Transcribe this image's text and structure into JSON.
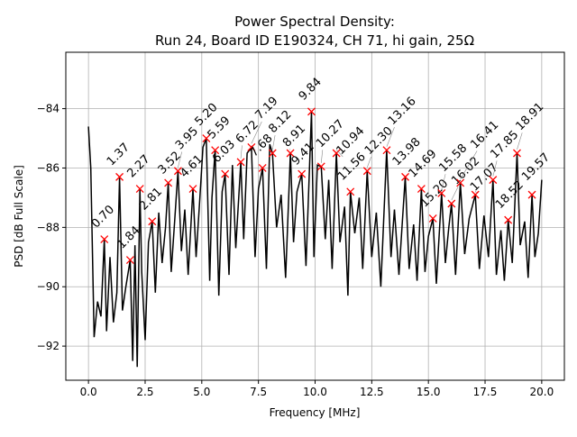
{
  "chart_data": {
    "type": "line",
    "title": "Power Spectral Density:",
    "subtitle": "Run 24, Board ID E190324, CH 71, hi gain, 25Ω",
    "xlabel": "Frequency [MHz]",
    "ylabel": "PSD [dB Full Scale]",
    "xlim": [
      -1.0,
      21.0
    ],
    "ylim": [
      -93.15,
      -82.1
    ],
    "xticks": [
      0.0,
      2.5,
      5.0,
      7.5,
      10.0,
      12.5,
      15.0,
      17.5,
      20.0
    ],
    "xtick_labels": [
      "0.0",
      "2.5",
      "5.0",
      "7.5",
      "10.0",
      "12.5",
      "15.0",
      "17.5",
      "20.0"
    ],
    "yticks": [
      -92,
      -90,
      -88,
      -86,
      -84
    ],
    "ytick_labels": [
      "−92",
      "−90",
      "−88",
      "−86",
      "−84"
    ],
    "grid": true,
    "line_color": "#000000",
    "marker_color": "#ff0000",
    "series": [
      {
        "x": [
          0.0,
          0.1,
          0.25,
          0.4,
          0.55,
          0.7,
          0.8,
          0.95,
          1.1,
          1.25,
          1.37,
          1.5,
          1.65,
          1.84,
          1.95,
          2.05,
          2.15,
          2.27,
          2.35,
          2.5,
          2.65,
          2.81,
          2.95,
          3.1,
          3.25,
          3.4,
          3.52,
          3.65,
          3.8,
          3.95,
          4.1,
          4.25,
          4.4,
          4.61,
          4.75,
          4.9,
          5.05,
          5.2,
          5.35,
          5.45,
          5.59,
          5.75,
          5.9,
          6.03,
          6.2,
          6.35,
          6.5,
          6.72,
          6.85,
          7.0,
          7.19,
          7.35,
          7.5,
          7.68,
          7.85,
          8.0,
          8.12,
          8.3,
          8.5,
          8.7,
          8.91,
          9.05,
          9.2,
          9.41,
          9.6,
          9.84,
          9.95,
          10.1,
          10.27,
          10.45,
          10.6,
          10.75,
          10.94,
          11.1,
          11.3,
          11.45,
          11.56,
          11.75,
          11.95,
          12.1,
          12.3,
          12.5,
          12.7,
          12.9,
          13.16,
          13.35,
          13.5,
          13.7,
          13.85,
          13.98,
          14.15,
          14.35,
          14.5,
          14.69,
          14.85,
          15.0,
          15.2,
          15.35,
          15.58,
          15.75,
          15.9,
          16.02,
          16.2,
          16.41,
          16.6,
          16.8,
          17.07,
          17.25,
          17.45,
          17.65,
          17.85,
          18.0,
          18.2,
          18.35,
          18.52,
          18.7,
          18.91,
          19.05,
          19.25,
          19.4,
          19.57,
          19.7,
          19.85,
          20.0
        ],
        "y": [
          -84.6,
          -86.0,
          -91.7,
          -90.5,
          -91.0,
          -88.4,
          -91.5,
          -89.0,
          -91.2,
          -90.2,
          -86.3,
          -90.8,
          -90.0,
          -89.1,
          -92.5,
          -88.6,
          -92.7,
          -86.7,
          -89.5,
          -91.8,
          -88.5,
          -87.8,
          -90.2,
          -87.5,
          -89.2,
          -88.0,
          -86.5,
          -89.5,
          -87.8,
          -86.1,
          -88.8,
          -87.4,
          -89.6,
          -86.7,
          -89.0,
          -87.2,
          -85.3,
          -85.0,
          -89.8,
          -87.0,
          -85.4,
          -90.3,
          -86.8,
          -86.2,
          -89.6,
          -85.9,
          -88.7,
          -85.8,
          -88.4,
          -85.5,
          -85.3,
          -89.0,
          -86.7,
          -86.0,
          -89.4,
          -85.2,
          -85.5,
          -88.0,
          -86.9,
          -89.7,
          -85.5,
          -88.5,
          -86.8,
          -86.2,
          -89.3,
          -84.1,
          -89.0,
          -85.9,
          -85.95,
          -88.4,
          -86.4,
          -89.4,
          -85.5,
          -88.5,
          -87.3,
          -90.3,
          -86.8,
          -88.2,
          -87.0,
          -89.4,
          -86.1,
          -89.0,
          -87.5,
          -90.0,
          -85.4,
          -89.0,
          -87.4,
          -89.6,
          -87.8,
          -86.3,
          -89.4,
          -87.9,
          -89.8,
          -86.7,
          -89.5,
          -88.3,
          -87.7,
          -89.9,
          -86.85,
          -89.2,
          -88.0,
          -87.2,
          -89.6,
          -86.5,
          -88.9,
          -87.7,
          -86.9,
          -89.4,
          -87.6,
          -89.0,
          -86.4,
          -89.6,
          -88.1,
          -89.8,
          -87.75,
          -89.2,
          -85.5,
          -88.6,
          -87.8,
          -89.7,
          -86.9,
          -89.0,
          -88.2,
          -86.4
        ]
      }
    ],
    "peaks": [
      {
        "label": "0.70",
        "x": 0.7,
        "y": -88.4
      },
      {
        "label": "1.37",
        "x": 1.37,
        "y": -86.3
      },
      {
        "label": "1.84",
        "x": 1.84,
        "y": -89.1
      },
      {
        "label": "2.27",
        "x": 2.27,
        "y": -86.7
      },
      {
        "label": "2.81",
        "x": 2.81,
        "y": -87.8
      },
      {
        "label": "3.52",
        "x": 3.52,
        "y": -86.5
      },
      {
        "label": "3.95",
        "x": 3.95,
        "y": -86.1
      },
      {
        "label": "4.61",
        "x": 4.61,
        "y": -86.7
      },
      {
        "label": "5.20",
        "x": 5.2,
        "y": -85.0
      },
      {
        "label": "5.59",
        "x": 5.59,
        "y": -85.4
      },
      {
        "label": "6.03",
        "x": 6.03,
        "y": -86.2
      },
      {
        "label": "6.72",
        "x": 6.72,
        "y": -85.8
      },
      {
        "label": "7.19",
        "x": 7.19,
        "y": -85.3
      },
      {
        "label": "7.68",
        "x": 7.68,
        "y": -86.0
      },
      {
        "label": "8.12",
        "x": 8.12,
        "y": -85.5
      },
      {
        "label": "8.91",
        "x": 8.91,
        "y": -85.5
      },
      {
        "label": "9.41",
        "x": 9.41,
        "y": -86.2
      },
      {
        "label": "9.84",
        "x": 9.84,
        "y": -84.1
      },
      {
        "label": "10.27",
        "x": 10.27,
        "y": -85.95
      },
      {
        "label": "10.94",
        "x": 10.94,
        "y": -85.5
      },
      {
        "label": "11.56",
        "x": 11.56,
        "y": -86.8
      },
      {
        "label": "12.30",
        "x": 12.3,
        "y": -86.1
      },
      {
        "label": "13.16",
        "x": 13.16,
        "y": -85.4
      },
      {
        "label": "13.98",
        "x": 13.98,
        "y": -86.3
      },
      {
        "label": "14.69",
        "x": 14.69,
        "y": -86.7
      },
      {
        "label": "15.20",
        "x": 15.2,
        "y": -87.7
      },
      {
        "label": "15.58",
        "x": 15.58,
        "y": -86.85
      },
      {
        "label": "16.02",
        "x": 16.02,
        "y": -87.2
      },
      {
        "label": "16.41",
        "x": 16.41,
        "y": -86.5
      },
      {
        "label": "17.07",
        "x": 17.07,
        "y": -86.9
      },
      {
        "label": "17.85",
        "x": 17.85,
        "y": -86.4
      },
      {
        "label": "18.52",
        "x": 18.52,
        "y": -87.75
      },
      {
        "label": "18.91",
        "x": 18.91,
        "y": -85.5
      },
      {
        "label": "19.57",
        "x": 19.57,
        "y": -86.9
      }
    ]
  }
}
